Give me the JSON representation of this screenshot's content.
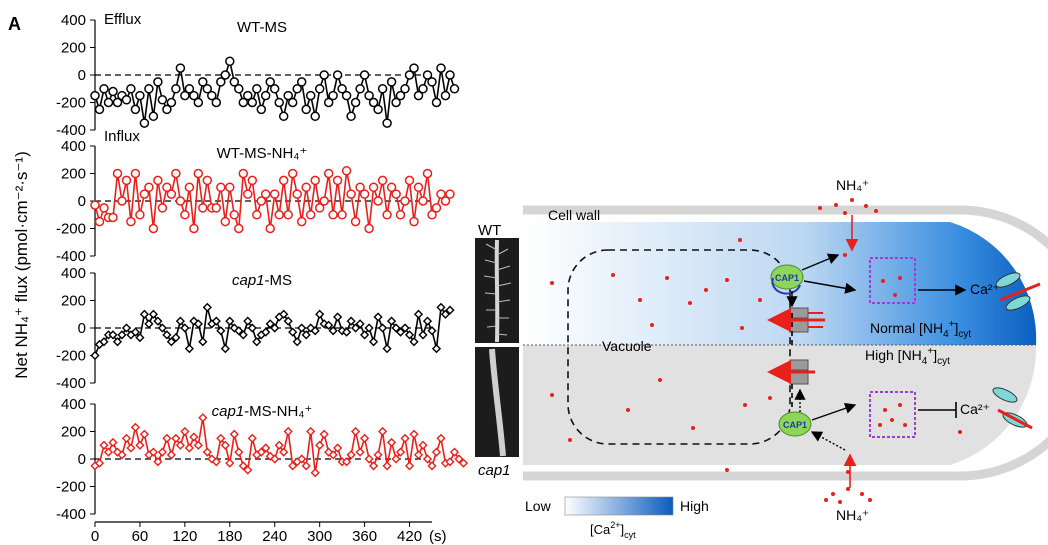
{
  "panel_label": "A",
  "y_axis_label": "Net NH₄⁺ flux (pmol·cm⁻²·s⁻¹)",
  "x_unit": "(s)",
  "efflux_label": "Efflux",
  "influx_label": "Influx",
  "colors": {
    "black_series": "#000000",
    "red_series": "#e8201c",
    "gradient_high": "#0b63c9",
    "gradient_low": "#ffffff",
    "high_cyt_bg": "#dedede"
  },
  "chart_data": [
    {
      "type": "line",
      "title": "WT-MS",
      "marker": "circle",
      "color": "#000000",
      "xlim": [
        0,
        450
      ],
      "ylim": [
        -400,
        400
      ],
      "yticks": [
        400,
        200,
        0,
        -200,
        -400
      ],
      "xticks": [
        0,
        60,
        120,
        180,
        240,
        300,
        360,
        420
      ],
      "x_step": 6,
      "values": [
        -150,
        -250,
        -100,
        -200,
        -120,
        -200,
        -150,
        -180,
        -100,
        -250,
        -150,
        -350,
        -100,
        -300,
        -50,
        -180,
        -250,
        -200,
        -100,
        50,
        -150,
        -100,
        -150,
        -200,
        -50,
        -100,
        -150,
        -200,
        -50,
        0,
        100,
        -50,
        -100,
        -200,
        -150,
        -200,
        -100,
        -250,
        -150,
        -50,
        -100,
        -200,
        -300,
        -150,
        -200,
        -100,
        -50,
        -250,
        -150,
        -300,
        -100,
        0,
        -200,
        -150,
        0,
        -100,
        -150,
        -300,
        -200,
        -100,
        0,
        -150,
        -200,
        -250,
        -100,
        -350,
        -50,
        -200,
        -150,
        -100,
        0,
        50,
        -150,
        -100,
        0,
        -50,
        -200,
        50,
        -150,
        0,
        -100
      ]
    },
    {
      "type": "line",
      "title": "WT-MS-NH₄⁺",
      "marker": "circle",
      "color": "#e8201c",
      "xlim": [
        0,
        450
      ],
      "ylim": [
        -400,
        400
      ],
      "yticks": [
        400,
        200,
        0,
        -200,
        -400
      ],
      "x_step": 6,
      "values": [
        -30,
        -150,
        -50,
        -120,
        -120,
        200,
        0,
        150,
        -150,
        200,
        -100,
        50,
        100,
        -200,
        150,
        -50,
        100,
        50,
        200,
        0,
        -100,
        100,
        -200,
        200,
        -50,
        150,
        -50,
        -50,
        100,
        -150,
        100,
        -100,
        -200,
        200,
        50,
        150,
        -100,
        0,
        50,
        -200,
        50,
        -100,
        150,
        -100,
        200,
        50,
        -150,
        100,
        -100,
        150,
        -50,
        0,
        200,
        -100,
        150,
        -100,
        220,
        50,
        -150,
        100,
        50,
        -200,
        100,
        0,
        150,
        -100,
        100,
        50,
        -100,
        0,
        150,
        -150,
        100,
        0,
        200,
        -100,
        -50,
        50,
        0,
        50
      ]
    },
    {
      "type": "line",
      "title": "cap1-MS",
      "marker": "diamond",
      "color": "#000000",
      "xlim": [
        0,
        450
      ],
      "ylim": [
        -400,
        400
      ],
      "yticks": [
        400,
        200,
        0,
        -200,
        -400
      ],
      "x_step": 6,
      "values": [
        -200,
        -120,
        -100,
        -50,
        -50,
        -100,
        -50,
        0,
        -50,
        -30,
        -70,
        100,
        30,
        100,
        50,
        0,
        -50,
        -100,
        -70,
        50,
        0,
        -150,
        50,
        30,
        -100,
        150,
        30,
        50,
        -20,
        -150,
        50,
        0,
        -20,
        -50,
        50,
        0,
        -100,
        -50,
        -30,
        30,
        0,
        80,
        100,
        50,
        -30,
        -100,
        0,
        -50,
        0,
        -20,
        100,
        30,
        20,
        -20,
        80,
        -20,
        -30,
        50,
        0,
        30,
        -50,
        0,
        -100,
        80,
        0,
        -150,
        50,
        0,
        -30,
        0,
        -50,
        -100,
        100,
        -50,
        50,
        -20,
        -150,
        150,
        100,
        130
      ]
    },
    {
      "type": "line",
      "title": "cap1-MS-NH₄⁺",
      "marker": "diamond",
      "color": "#e8201c",
      "xlim": [
        0,
        450
      ],
      "ylim": [
        -400,
        400
      ],
      "yticks": [
        400,
        200,
        0,
        -200,
        -400
      ],
      "x_step": 6,
      "values": [
        -50,
        -30,
        100,
        50,
        120,
        50,
        30,
        150,
        80,
        230,
        100,
        180,
        30,
        50,
        -20,
        50,
        150,
        30,
        150,
        100,
        200,
        80,
        160,
        100,
        300,
        50,
        0,
        -20,
        150,
        100,
        -30,
        180,
        50,
        -50,
        -80,
        150,
        30,
        50,
        80,
        20,
        0,
        100,
        50,
        200,
        -50,
        -20,
        0,
        -50,
        200,
        -100,
        100,
        180,
        50,
        30,
        80,
        -20,
        -20,
        30,
        200,
        50,
        150,
        0,
        -50,
        30,
        200,
        -50,
        120,
        0,
        50,
        150,
        -50,
        180,
        30,
        100,
        0,
        -50,
        50,
        150,
        -30,
        -20,
        50,
        0,
        -30
      ]
    }
  ],
  "diagram": {
    "wt_label": "WT",
    "cap1_label": "cap1",
    "cell_wall": "Cell wall",
    "vacuole": "Vacuole",
    "cap1_protein": "CAP1",
    "nh4_top": "NH₄⁺",
    "nh4_bottom": "NH₄⁺",
    "ca_top": "Ca²⁺",
    "ca_bottom": "Ca²⁺",
    "normal_label_base": "Normal [NH",
    "normal_label_ion": "4",
    "normal_label_charge": "+",
    "normal_label_tail": "]",
    "normal_label_sub": "cyt",
    "high_label_base": "High [NH",
    "high_label_ion": "4",
    "high_label_charge": "+",
    "high_label_tail": "]",
    "high_label_sub": "cyt",
    "legend_low": "Low",
    "legend_high": "High",
    "legend_caption_base": "[Ca",
    "legend_caption_sup": "2+",
    "legend_caption_tail": "]",
    "legend_caption_sub": "cyt"
  }
}
